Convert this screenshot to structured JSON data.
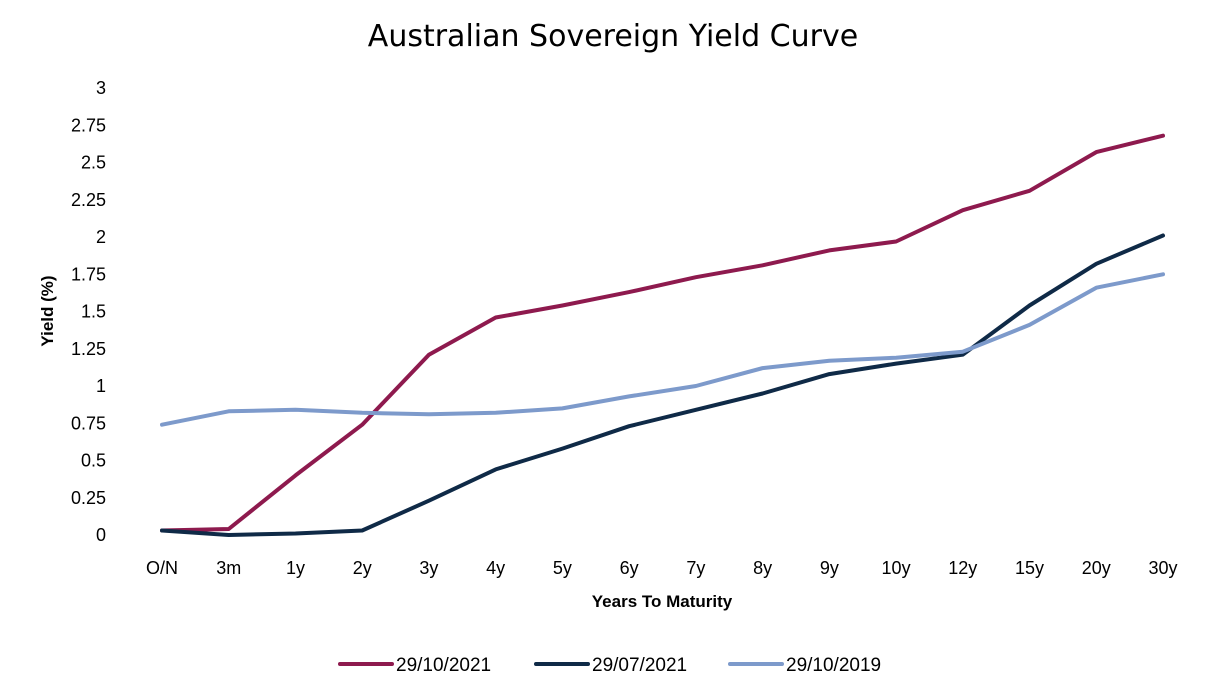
{
  "chart_data": {
    "type": "line",
    "title": "Australian Sovereign Yield Curve",
    "xlabel": "Years To Maturity",
    "ylabel": "Yield (%)",
    "categories": [
      "O/N",
      "3m",
      "1y",
      "2y",
      "3y",
      "4y",
      "5y",
      "6y",
      "7y",
      "8y",
      "9y",
      "10y",
      "12y",
      "15y",
      "20y",
      "30y"
    ],
    "ylim": [
      0,
      3
    ],
    "yticks": [
      "0",
      "0.25",
      "0.5",
      "0.75",
      "1",
      "1.25",
      "1.5",
      "1.75",
      "2",
      "2.25",
      "2.5",
      "2.75",
      "3"
    ],
    "ytick_values": [
      0,
      0.25,
      0.5,
      0.75,
      1,
      1.25,
      1.5,
      1.75,
      2,
      2.25,
      2.5,
      2.75,
      3
    ],
    "grid": false,
    "legend_position": "bottom",
    "series": [
      {
        "name": "29/10/2021",
        "color": "#8E1A4E",
        "values": [
          0.03,
          0.04,
          0.4,
          0.74,
          1.21,
          1.46,
          1.54,
          1.63,
          1.73,
          1.81,
          1.91,
          1.97,
          2.18,
          2.31,
          2.57,
          2.68
        ]
      },
      {
        "name": "29/07/2021",
        "color": "#0F2A47",
        "values": [
          0.03,
          0.0,
          0.01,
          0.03,
          0.23,
          0.44,
          0.58,
          0.73,
          0.84,
          0.95,
          1.08,
          1.15,
          1.21,
          1.54,
          1.82,
          2.01
        ]
      },
      {
        "name": "29/10/2019",
        "color": "#7D9ACB",
        "values": [
          0.74,
          0.83,
          0.84,
          0.82,
          0.81,
          0.82,
          0.85,
          0.93,
          1.0,
          1.12,
          1.17,
          1.19,
          1.23,
          1.41,
          1.66,
          1.75
        ]
      }
    ]
  }
}
